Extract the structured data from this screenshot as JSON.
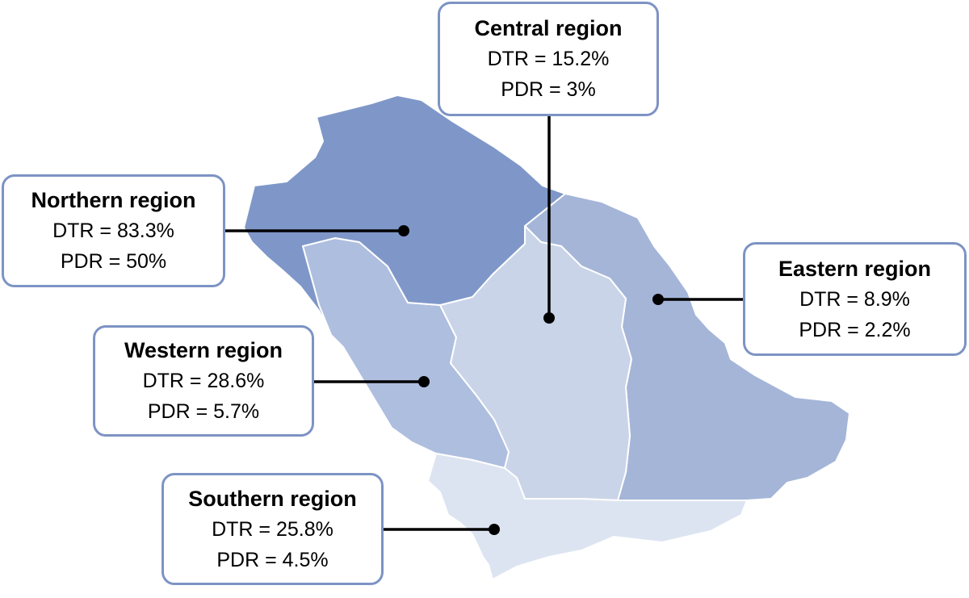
{
  "colors": {
    "northern": "#7f97c8",
    "central": "#c9d4e8",
    "eastern": "#a4b5d8",
    "western": "#aebedf",
    "southern": "#dde4f1",
    "callout_border": "#7d93c4",
    "connector": "#000000"
  },
  "regions": {
    "central": {
      "title": "Central region",
      "dtr": "DTR = 15.2%",
      "pdr": "PDR = 3%"
    },
    "northern": {
      "title": "Northern region",
      "dtr": "DTR = 83.3%",
      "pdr": "PDR = 50%"
    },
    "eastern": {
      "title": "Eastern region",
      "dtr": "DTR = 8.9%",
      "pdr": "PDR = 2.2%"
    },
    "western": {
      "title": "Western region",
      "dtr": "DTR = 28.6%",
      "pdr": "PDR = 5.7%"
    },
    "southern": {
      "title": "Southern region",
      "dtr": "DTR = 25.8%",
      "pdr": "PDR = 4.5%"
    }
  }
}
